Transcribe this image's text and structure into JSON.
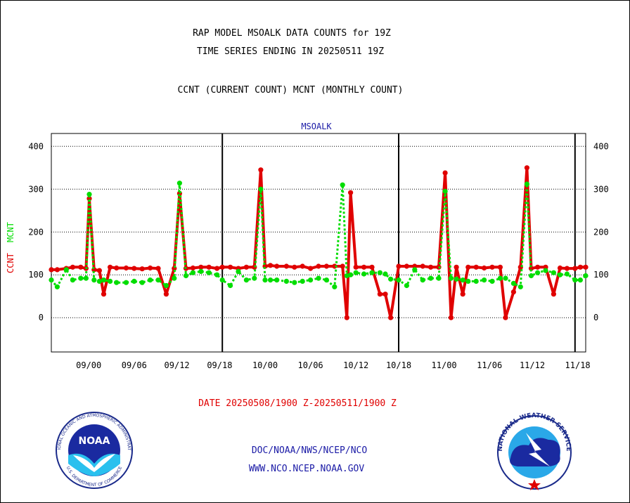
{
  "header": {
    "line1": "RAP MODEL MSOALK DATA COUNTS for 19Z",
    "line2": "TIME SERIES ENDING IN 20250511 19Z",
    "line3": "CCNT (CURRENT COUNT) MCNT (MONTHLY COUNT)"
  },
  "footer": {
    "date_range": "DATE 20250508/1900 Z-20250511/1900 Z",
    "org": "DOC/NOAA/NWS/NCEP/NCO",
    "url": "WWW.NCO.NCEP.NOAA.GOV"
  },
  "logos": {
    "noaa": {
      "inner": "NOAA",
      "ring": "NATIONAL OCEANIC AND ATMOSPHERIC ADMINISTRATION",
      "ring_bottom": "U.S. DEPARTMENT OF COMMERCE"
    },
    "nws": {
      "ring": "NATIONAL WEATHER SERVICE"
    }
  },
  "colors": {
    "ccnt": "#e00000",
    "mcnt": "#00dd00",
    "title": "#1a1aa6"
  },
  "chart_data": {
    "type": "line",
    "title": "MSOALK",
    "ylabel_ccnt": "CCNT",
    "ylabel_mcnt": "MCNT",
    "ylim": [
      -80,
      430
    ],
    "yticks": [
      0,
      100,
      200,
      300,
      400
    ],
    "xlim": [
      0,
      100
    ],
    "xtick_positions": [
      7,
      15.5,
      23.5,
      31.5,
      40,
      48.5,
      57,
      65,
      73.5,
      82,
      90,
      98.5
    ],
    "xtick_labels": [
      "09/00",
      "09/06",
      "09/12",
      "09/18",
      "10/00",
      "10/06",
      "10/12",
      "10/18",
      "11/00",
      "11/06",
      "11/12",
      "11/18"
    ],
    "day_lines": [
      32,
      65,
      98
    ],
    "grid": "horizontal dotted",
    "series": [
      {
        "name": "CCNT",
        "x": [
          0,
          1.1,
          2.8,
          4,
          5.5,
          6.5,
          7.1,
          8,
          9,
          9.8,
          11,
          12.2,
          14,
          15.5,
          17,
          18.5,
          20,
          21.5,
          23,
          24,
          25.2,
          26.5,
          28,
          29.5,
          31,
          32,
          33.5,
          35,
          36.5,
          38,
          39.2,
          40,
          41,
          42.2,
          44,
          45.5,
          47,
          48.5,
          50,
          51.5,
          53,
          54.5,
          55.3,
          56,
          57,
          58.5,
          60,
          61.5,
          62.5,
          63.5,
          65,
          66.5,
          68,
          69.5,
          71,
          72.5,
          73.7,
          74.8,
          75.8,
          77,
          78,
          79.5,
          81,
          82.5,
          84,
          85,
          86.5,
          87.8,
          89,
          89.8,
          91,
          92.5,
          94,
          95.2,
          96.5,
          98,
          99,
          100
        ],
        "values": [
          112,
          112,
          115,
          118,
          118,
          115,
          278,
          112,
          110,
          55,
          118,
          116,
          116,
          115,
          114,
          116,
          115,
          55,
          115,
          290,
          115,
          116,
          118,
          118,
          115,
          118,
          118,
          115,
          118,
          118,
          345,
          120,
          122,
          120,
          120,
          118,
          120,
          115,
          120,
          120,
          120,
          120,
          0,
          292,
          118,
          118,
          118,
          55,
          55,
          0,
          120,
          120,
          120,
          120,
          118,
          118,
          338,
          0,
          118,
          55,
          118,
          118,
          116,
          118,
          118,
          0,
          60,
          118,
          350,
          115,
          118,
          118,
          55,
          116,
          115,
          115,
          118,
          118
        ]
      },
      {
        "name": "MCNT",
        "x": [
          0,
          1.1,
          2.8,
          4,
          5.5,
          6.5,
          7.1,
          8,
          9,
          9.8,
          11,
          12.2,
          14,
          15.5,
          17,
          18.5,
          20,
          21.5,
          23,
          24,
          25.2,
          26.5,
          28,
          29.5,
          31,
          32,
          33.5,
          35,
          36.5,
          38,
          39.2,
          40,
          41,
          42.2,
          44,
          45.5,
          47,
          48.5,
          50,
          51.5,
          53,
          54.5,
          55.3,
          56,
          57,
          58.5,
          60,
          61.5,
          62.5,
          63.5,
          65,
          66.5,
          68,
          69.5,
          71,
          72.5,
          73.7,
          74.8,
          75.8,
          77,
          78,
          79.5,
          81,
          82.5,
          84,
          85,
          86.5,
          87.8,
          89,
          89.8,
          91,
          92.5,
          94,
          95.2,
          96.5,
          98,
          99,
          100
        ],
        "values": [
          88,
          72,
          112,
          88,
          92,
          92,
          288,
          88,
          85,
          88,
          85,
          82,
          82,
          85,
          82,
          88,
          88,
          75,
          92,
          314,
          98,
          105,
          108,
          105,
          100,
          88,
          75,
          108,
          88,
          92,
          300,
          88,
          88,
          88,
          85,
          82,
          85,
          88,
          92,
          88,
          72,
          310,
          98,
          100,
          105,
          102,
          105,
          105,
          102,
          90,
          88,
          75,
          112,
          88,
          92,
          92,
          295,
          92,
          90,
          88,
          85,
          85,
          88,
          85,
          92,
          92,
          80,
          72,
          312,
          98,
          105,
          110,
          105,
          100,
          102,
          88,
          88,
          98
        ]
      }
    ]
  }
}
